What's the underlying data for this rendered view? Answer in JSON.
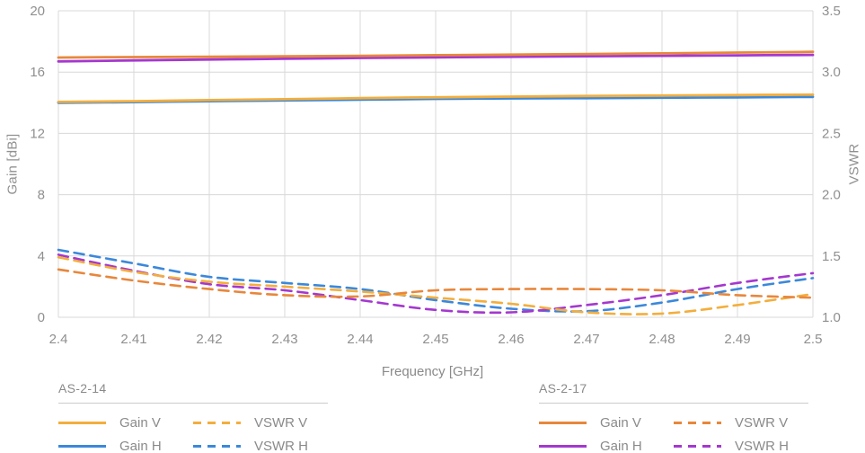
{
  "colors": {
    "background": "#ffffff",
    "grid": "#d8d8d8",
    "axis_text": "#8f8f8f",
    "legend_text": "#8a8a8a"
  },
  "chart_data": {
    "type": "line",
    "title": "",
    "xlabel": "Frequency [GHz]",
    "grid": true,
    "x_ticks": [
      "2.4",
      "2.41",
      "2.42",
      "2.43",
      "2.44",
      "2.45",
      "2.46",
      "2.47",
      "2.48",
      "2.49",
      "2.5"
    ],
    "x_range": [
      2.4,
      2.5
    ],
    "left_axis": {
      "label": "Gain [dBi]",
      "ticks": [
        "20",
        "16",
        "12",
        "8",
        "4",
        "0"
      ],
      "range": [
        0,
        20
      ]
    },
    "right_axis": {
      "label": "VSWR",
      "ticks": [
        "3.5",
        "3.0",
        "2.5",
        "2.0",
        "1.5",
        "1.0"
      ],
      "range": [
        1.0,
        3.5
      ]
    },
    "x": [
      2.4,
      2.41,
      2.42,
      2.43,
      2.44,
      2.45,
      2.46,
      2.47,
      2.48,
      2.49,
      2.5
    ],
    "series": [
      {
        "group": "AS-2-14",
        "name": "Gain V",
        "axis": "left",
        "style": "solid",
        "color": "#F3AE3D",
        "values": [
          14.05,
          14.1,
          14.17,
          14.23,
          14.3,
          14.35,
          14.4,
          14.44,
          14.47,
          14.5,
          14.53
        ]
      },
      {
        "group": "AS-2-14",
        "name": "Gain H",
        "axis": "left",
        "style": "solid",
        "color": "#3B88DB",
        "values": [
          14.0,
          14.04,
          14.1,
          14.15,
          14.2,
          14.25,
          14.28,
          14.3,
          14.33,
          14.35,
          14.38
        ]
      },
      {
        "group": "AS-2-14",
        "name": "VSWR V",
        "axis": "right",
        "style": "dashed",
        "color": "#F3AE3D",
        "values": [
          1.49,
          1.37,
          1.29,
          1.25,
          1.21,
          1.16,
          1.11,
          1.04,
          1.03,
          1.1,
          1.19
        ]
      },
      {
        "group": "AS-2-14",
        "name": "VSWR H",
        "axis": "right",
        "style": "dashed",
        "color": "#3B88DB",
        "values": [
          1.55,
          1.44,
          1.33,
          1.28,
          1.23,
          1.14,
          1.07,
          1.05,
          1.12,
          1.23,
          1.32
        ]
      },
      {
        "group": "AS-2-17",
        "name": "Gain V",
        "axis": "left",
        "style": "solid",
        "color": "#E8873B",
        "values": [
          16.95,
          16.98,
          17.0,
          17.03,
          17.06,
          17.1,
          17.14,
          17.18,
          17.22,
          17.27,
          17.32
        ]
      },
      {
        "group": "AS-2-17",
        "name": "Gain H",
        "axis": "left",
        "style": "solid",
        "color": "#A438CF",
        "values": [
          16.7,
          16.76,
          16.82,
          16.87,
          16.92,
          16.96,
          17.0,
          17.03,
          17.06,
          17.09,
          17.12
        ]
      },
      {
        "group": "AS-2-17",
        "name": "VSWR V",
        "axis": "right",
        "style": "dashed",
        "color": "#E8873B",
        "values": [
          1.39,
          1.3,
          1.23,
          1.18,
          1.17,
          1.22,
          1.23,
          1.23,
          1.22,
          1.18,
          1.16
        ]
      },
      {
        "group": "AS-2-17",
        "name": "VSWR H",
        "axis": "right",
        "style": "dashed",
        "color": "#A438CF",
        "values": [
          1.51,
          1.38,
          1.27,
          1.22,
          1.14,
          1.06,
          1.04,
          1.1,
          1.18,
          1.28,
          1.36
        ]
      }
    ],
    "legend_groups": [
      {
        "title": "AS-2-14"
      },
      {
        "title": "AS-2-17"
      }
    ],
    "legend_position": "bottom"
  }
}
